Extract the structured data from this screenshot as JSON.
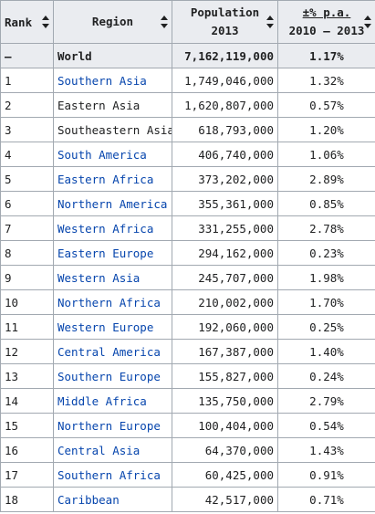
{
  "table": {
    "headers": {
      "rank": "Rank",
      "region": "Region",
      "population_line1": "Population",
      "population_line2": "2013",
      "change_line1": "±% p.a.",
      "change_line2": "2010 – 2013"
    },
    "world": {
      "rank": "—",
      "region": "World",
      "population": "7,162,119,000",
      "change": "1.17%"
    },
    "rows": [
      {
        "rank": "1",
        "region": "Southern Asia",
        "population": "1,749,046,000",
        "change": "1.32%",
        "linked": true
      },
      {
        "rank": "2",
        "region": "Eastern Asia",
        "population": "1,620,807,000",
        "change": "0.57%",
        "linked": false
      },
      {
        "rank": "3",
        "region": "Southeastern Asia",
        "population": "618,793,000",
        "change": "1.20%",
        "linked": false
      },
      {
        "rank": "4",
        "region": "South America",
        "population": "406,740,000",
        "change": "1.06%",
        "linked": true
      },
      {
        "rank": "5",
        "region": "Eastern Africa",
        "population": "373,202,000",
        "change": "2.89%",
        "linked": true
      },
      {
        "rank": "6",
        "region": "Northern America",
        "population": "355,361,000",
        "change": "0.85%",
        "linked": true
      },
      {
        "rank": "7",
        "region": "Western Africa",
        "population": "331,255,000",
        "change": "2.78%",
        "linked": true
      },
      {
        "rank": "8",
        "region": "Eastern Europe",
        "population": "294,162,000",
        "change": "0.23%",
        "linked": true
      },
      {
        "rank": "9",
        "region": "Western Asia",
        "population": "245,707,000",
        "change": "1.98%",
        "linked": true
      },
      {
        "rank": "10",
        "region": "Northern Africa",
        "population": "210,002,000",
        "change": "1.70%",
        "linked": true
      },
      {
        "rank": "11",
        "region": "Western Europe",
        "population": "192,060,000",
        "change": "0.25%",
        "linked": true
      },
      {
        "rank": "12",
        "region": "Central America",
        "population": "167,387,000",
        "change": "1.40%",
        "linked": true
      },
      {
        "rank": "13",
        "region": "Southern Europe",
        "population": "155,827,000",
        "change": "0.24%",
        "linked": true
      },
      {
        "rank": "14",
        "region": "Middle Africa",
        "population": "135,750,000",
        "change": "2.79%",
        "linked": true
      },
      {
        "rank": "15",
        "region": "Northern Europe",
        "population": "100,404,000",
        "change": "0.54%",
        "linked": true
      },
      {
        "rank": "16",
        "region": "Central Asia",
        "population": "64,370,000",
        "change": "1.43%",
        "linked": true
      },
      {
        "rank": "17",
        "region": "Southern Africa",
        "population": "60,425,000",
        "change": "0.91%",
        "linked": true
      },
      {
        "rank": "18",
        "region": "Caribbean",
        "population": "42,517,000",
        "change": "0.71%",
        "linked": true
      }
    ]
  },
  "colors": {
    "header_bg": "#eaecf0",
    "border": "#a2a9b1",
    "link": "#0645ad",
    "text": "#202122"
  },
  "icons": {
    "sort": "sort-arrows-icon"
  }
}
